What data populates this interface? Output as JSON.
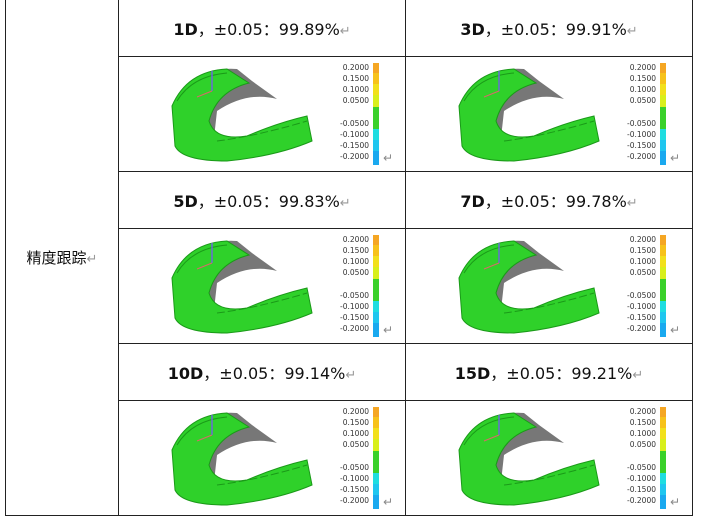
{
  "row_label": "精度跟踪",
  "return_mark": "↵",
  "scale_labels": [
    "0.2000",
    "0.1500",
    "0.1000",
    "0.0500",
    "-0.0500",
    "-0.1000",
    "-0.1500",
    "-0.2000"
  ],
  "scale_colors": [
    "#f5a623",
    "#f7c21a",
    "#f2e01c",
    "#d8ef1c",
    "#3ad12a",
    "#1fdde0",
    "#1fc6ef",
    "#1aa9ef"
  ],
  "cells": [
    {
      "day": "1D",
      "rest": "，±0.05：99.89%"
    },
    {
      "day": "3D",
      "rest": "，±0.05：99.91%"
    },
    {
      "day": "5D",
      "rest": "，±0.05：99.83%"
    },
    {
      "day": "7D",
      "rest": "，±0.05：99.78%"
    },
    {
      "day": "10D",
      "rest": "，±0.05：99.14%"
    },
    {
      "day": "15D",
      "rest": "，±0.05：99.21%"
    }
  ]
}
